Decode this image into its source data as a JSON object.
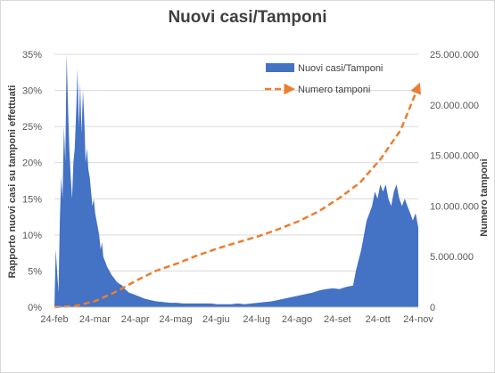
{
  "chart_data": {
    "type": "area",
    "title": "Nuovi casi/Tamponi",
    "ylabel_left": "Rapporto nuovi casi su tamponi effettuati",
    "ylabel_right": "Numero tamponi",
    "x_ticks": [
      "24-feb",
      "24-mar",
      "24-apr",
      "24-mag",
      "24-giu",
      "24-lug",
      "24-ago",
      "24-set",
      "24-ott",
      "24-nov"
    ],
    "y_left_ticks": [
      "0%",
      "5%",
      "10%",
      "15%",
      "20%",
      "25%",
      "30%",
      "35%"
    ],
    "y_left_lim": [
      0,
      35
    ],
    "y_right_ticks": [
      "0",
      "5.000.000",
      "10.000.000",
      "15.000.000",
      "20.000.000",
      "25.000.000"
    ],
    "y_right_lim": [
      0,
      25000000
    ],
    "legend_position": "top-right",
    "series": [
      {
        "name": "Nuovi casi/Tamponi",
        "type": "area",
        "axis": "left",
        "color": "#4472c4",
        "points": [
          [
            0,
            0
          ],
          [
            1,
            8
          ],
          [
            2,
            5
          ],
          [
            3,
            2
          ],
          [
            4,
            12
          ],
          [
            5,
            18
          ],
          [
            6,
            15
          ],
          [
            7,
            25
          ],
          [
            8,
            20
          ],
          [
            9,
            35
          ],
          [
            10,
            28
          ],
          [
            11,
            22
          ],
          [
            12,
            18
          ],
          [
            13,
            15
          ],
          [
            14,
            20
          ],
          [
            15,
            22
          ],
          [
            16,
            27
          ],
          [
            17,
            33
          ],
          [
            18,
            25
          ],
          [
            19,
            31
          ],
          [
            20,
            24
          ],
          [
            21,
            30
          ],
          [
            22,
            26
          ],
          [
            23,
            20
          ],
          [
            24,
            22
          ],
          [
            25,
            19
          ],
          [
            26,
            18
          ],
          [
            27,
            16
          ],
          [
            28,
            14
          ],
          [
            29,
            15
          ],
          [
            30,
            13
          ],
          [
            31,
            12
          ],
          [
            32,
            11
          ],
          [
            33,
            10
          ],
          [
            34,
            8
          ],
          [
            35,
            9
          ],
          [
            36,
            7
          ],
          [
            37,
            6.5
          ],
          [
            38,
            6
          ],
          [
            39,
            5.5
          ],
          [
            40,
            5.2
          ],
          [
            42,
            4.5
          ],
          [
            44,
            4
          ],
          [
            46,
            3.5
          ],
          [
            48,
            3.2
          ],
          [
            50,
            3
          ],
          [
            52,
            2.5
          ],
          [
            55,
            2
          ],
          [
            58,
            1.8
          ],
          [
            62,
            1.5
          ],
          [
            66,
            1.2
          ],
          [
            70,
            1
          ],
          [
            75,
            0.8
          ],
          [
            80,
            0.7
          ],
          [
            85,
            0.6
          ],
          [
            90,
            0.6
          ],
          [
            95,
            0.5
          ],
          [
            100,
            0.5
          ],
          [
            105,
            0.5
          ],
          [
            110,
            0.5
          ],
          [
            115,
            0.5
          ],
          [
            120,
            0.4
          ],
          [
            125,
            0.4
          ],
          [
            130,
            0.4
          ],
          [
            135,
            0.5
          ],
          [
            140,
            0.4
          ],
          [
            145,
            0.5
          ],
          [
            150,
            0.6
          ],
          [
            155,
            0.7
          ],
          [
            160,
            0.8
          ],
          [
            165,
            1
          ],
          [
            170,
            1.2
          ],
          [
            175,
            1.4
          ],
          [
            180,
            1.6
          ],
          [
            185,
            1.8
          ],
          [
            190,
            2
          ],
          [
            195,
            2.3
          ],
          [
            200,
            2.5
          ],
          [
            205,
            2.6
          ],
          [
            210,
            2.5
          ],
          [
            215,
            2.8
          ],
          [
            220,
            3
          ],
          [
            222,
            5
          ],
          [
            224,
            6.5
          ],
          [
            226,
            8
          ],
          [
            228,
            10
          ],
          [
            230,
            12
          ],
          [
            232,
            13
          ],
          [
            234,
            14
          ],
          [
            236,
            16
          ],
          [
            238,
            15
          ],
          [
            240,
            17
          ],
          [
            242,
            16
          ],
          [
            244,
            17
          ],
          [
            246,
            15
          ],
          [
            248,
            14
          ],
          [
            250,
            16
          ],
          [
            252,
            17
          ],
          [
            254,
            15
          ],
          [
            256,
            14
          ],
          [
            258,
            15
          ],
          [
            260,
            14
          ],
          [
            262,
            13
          ],
          [
            264,
            12
          ],
          [
            266,
            13
          ],
          [
            268,
            11
          ]
        ]
      },
      {
        "name": "Numero tamponi",
        "type": "line",
        "axis": "right",
        "style": "dashed-arrow",
        "color": "#ed7d31",
        "points": [
          [
            0,
            0
          ],
          [
            15,
            100000
          ],
          [
            30,
            600000
          ],
          [
            45,
            1500000
          ],
          [
            60,
            2600000
          ],
          [
            75,
            3600000
          ],
          [
            90,
            4300000
          ],
          [
            105,
            5100000
          ],
          [
            120,
            5800000
          ],
          [
            135,
            6400000
          ],
          [
            150,
            7000000
          ],
          [
            165,
            7700000
          ],
          [
            180,
            8500000
          ],
          [
            195,
            9500000
          ],
          [
            210,
            10800000
          ],
          [
            225,
            12300000
          ],
          [
            240,
            14600000
          ],
          [
            255,
            17500000
          ],
          [
            268,
            21800000
          ]
        ]
      }
    ]
  }
}
